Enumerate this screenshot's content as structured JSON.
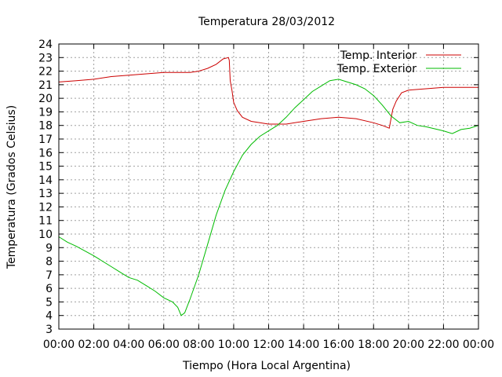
{
  "chart_data": {
    "type": "line",
    "title": "Temperatura 28/03/2012",
    "xlabel": "Tiempo (Hora Local Argentina)",
    "ylabel": "Temperatura (Grados Celsius)",
    "x_ticks": [
      "00:00",
      "02:00",
      "04:00",
      "06:00",
      "08:00",
      "10:00",
      "12:00",
      "14:00",
      "16:00",
      "18:00",
      "20:00",
      "22:00",
      "00:00"
    ],
    "xlim_hours": [
      0,
      24
    ],
    "ylim": [
      3,
      24
    ],
    "y_ticks": [
      3,
      4,
      5,
      6,
      7,
      8,
      9,
      10,
      11,
      12,
      13,
      14,
      15,
      16,
      17,
      18,
      19,
      20,
      21,
      22,
      23,
      24
    ],
    "grid": true,
    "legend_position": "top-right",
    "series": [
      {
        "name": "Temp. Interior",
        "color": "#cc0000",
        "x_hours": [
          0,
          1,
          2,
          3,
          4,
          5,
          6,
          7,
          7.5,
          8,
          8.5,
          9,
          9.4,
          9.7,
          9.75,
          9.8,
          9.9,
          10.0,
          10.2,
          10.5,
          11,
          11.5,
          12,
          13,
          14,
          15,
          16,
          17,
          18,
          18.5,
          18.9,
          19.0,
          19.1,
          19.3,
          19.6,
          20,
          21,
          22,
          23,
          24
        ],
        "values": [
          21.2,
          21.3,
          21.4,
          21.6,
          21.7,
          21.8,
          21.9,
          21.9,
          21.9,
          22.0,
          22.2,
          22.5,
          22.9,
          23.0,
          22.8,
          21.3,
          20.6,
          19.7,
          19.1,
          18.6,
          18.3,
          18.2,
          18.1,
          18.1,
          18.3,
          18.5,
          18.6,
          18.5,
          18.2,
          18.0,
          17.8,
          18.5,
          19.2,
          19.8,
          20.4,
          20.6,
          20.7,
          20.8,
          20.8,
          20.8
        ]
      },
      {
        "name": "Temp. Exterior",
        "color": "#00bb00",
        "x_hours": [
          0,
          0.5,
          1,
          2,
          3,
          3.5,
          4,
          4.5,
          5,
          5.5,
          6,
          6.5,
          6.8,
          7.0,
          7.2,
          7.5,
          8,
          8.5,
          9,
          9.5,
          10,
          10.5,
          11,
          11.5,
          12,
          12.5,
          13,
          13.5,
          14,
          14.5,
          15,
          15.5,
          16,
          16.5,
          17,
          17.5,
          18,
          18.5,
          19,
          19.5,
          20,
          20.5,
          21,
          22,
          22.5,
          23,
          23.5,
          24
        ],
        "values": [
          9.8,
          9.4,
          9.1,
          8.4,
          7.6,
          7.2,
          6.8,
          6.6,
          6.2,
          5.8,
          5.3,
          5.0,
          4.6,
          4.0,
          4.2,
          5.2,
          7.0,
          9.2,
          11.4,
          13.2,
          14.6,
          15.8,
          16.6,
          17.2,
          17.6,
          18.0,
          18.6,
          19.3,
          19.9,
          20.5,
          20.9,
          21.3,
          21.4,
          21.2,
          21.0,
          20.7,
          20.2,
          19.5,
          18.7,
          18.2,
          18.3,
          18.0,
          17.9,
          17.6,
          17.4,
          17.7,
          17.8,
          18.0
        ]
      }
    ]
  }
}
